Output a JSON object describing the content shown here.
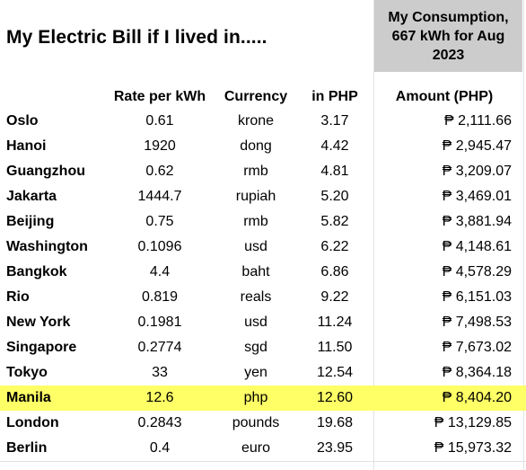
{
  "title": "My Electric Bill if I lived in.....",
  "consumption": {
    "line1": "My Consumption,",
    "line2": "667 kWh for Aug",
    "line3": "2023"
  },
  "headers": {
    "rate": "Rate per kWh",
    "currency": "Currency",
    "in_php": "in PHP",
    "amount": "Amount (PHP)"
  },
  "colors": {
    "highlight": "#ffff66",
    "consumption_bg": "#cccccc"
  },
  "rows": [
    {
      "city": "Oslo",
      "rate": "0.61",
      "currency": "krone",
      "in_php": "3.17",
      "amount": "₱ 2,111.66"
    },
    {
      "city": "Hanoi",
      "rate": "1920",
      "currency": "dong",
      "in_php": "4.42",
      "amount": "₱ 2,945.47"
    },
    {
      "city": "Guangzhou",
      "rate": "0.62",
      "currency": "rmb",
      "in_php": "4.81",
      "amount": "₱ 3,209.07"
    },
    {
      "city": "Jakarta",
      "rate": "1444.7",
      "currency": "rupiah",
      "in_php": "5.20",
      "amount": "₱ 3,469.01"
    },
    {
      "city": "Beijing",
      "rate": "0.75",
      "currency": "rmb",
      "in_php": "5.82",
      "amount": "₱ 3,881.94"
    },
    {
      "city": "Washington",
      "rate": "0.1096",
      "currency": "usd",
      "in_php": "6.22",
      "amount": "₱ 4,148.61"
    },
    {
      "city": "Bangkok",
      "rate": "4.4",
      "currency": "baht",
      "in_php": "6.86",
      "amount": "₱ 4,578.29"
    },
    {
      "city": "Rio",
      "rate": "0.819",
      "currency": "reals",
      "in_php": "9.22",
      "amount": "₱ 6,151.03"
    },
    {
      "city": "New York",
      "rate": "0.1981",
      "currency": "usd",
      "in_php": "11.24",
      "amount": "₱ 7,498.53"
    },
    {
      "city": "Singapore",
      "rate": "0.2774",
      "currency": "sgd",
      "in_php": "11.50",
      "amount": "₱ 7,673.02"
    },
    {
      "city": "Tokyo",
      "rate": "33",
      "currency": "yen",
      "in_php": "12.54",
      "amount": "₱ 8,364.18"
    },
    {
      "city": "Manila",
      "rate": "12.6",
      "currency": "php",
      "in_php": "12.60",
      "amount": "₱ 8,404.20",
      "highlighted": true
    },
    {
      "city": "London",
      "rate": "0.2843",
      "currency": "pounds",
      "in_php": "19.68",
      "amount": "₱ 13,129.85"
    },
    {
      "city": "Berlin",
      "rate": "0.4",
      "currency": "euro",
      "in_php": "23.95",
      "amount": "₱ 15,973.32"
    }
  ]
}
